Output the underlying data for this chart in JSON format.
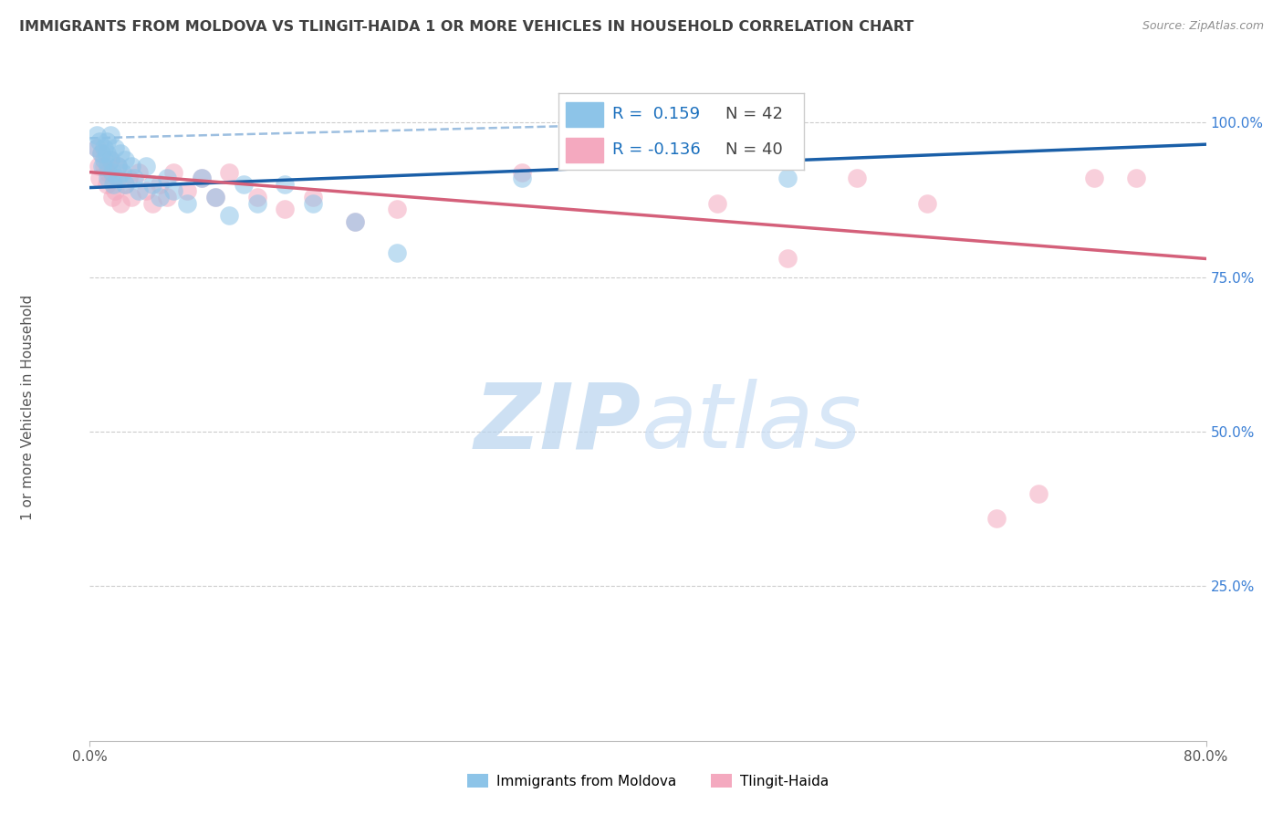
{
  "title": "IMMIGRANTS FROM MOLDOVA VS TLINGIT-HAIDA 1 OR MORE VEHICLES IN HOUSEHOLD CORRELATION CHART",
  "source": "Source: ZipAtlas.com",
  "ylabel": "1 or more Vehicles in Household",
  "ytick_labels": [
    "100.0%",
    "75.0%",
    "50.0%",
    "25.0%"
  ],
  "ytick_values": [
    1.0,
    0.75,
    0.5,
    0.25
  ],
  "xlim": [
    0.0,
    0.8
  ],
  "ylim": [
    0.0,
    1.08
  ],
  "legend_label1": "Immigrants from Moldova",
  "legend_label2": "Tlingit-Haida",
  "blue_color": "#8dc4e8",
  "pink_color": "#f4a9bf",
  "blue_line_color": "#1a5fa8",
  "pink_line_color": "#d4607a",
  "dashed_line_color": "#9dbfe0",
  "title_color": "#404040",
  "source_color": "#909090",
  "legend_r_color": "#1a6fbd",
  "watermark_zip_color": "#b8d4ee",
  "watermark_atlas_color": "#c8ddf0",
  "scatter_blue": {
    "x": [
      0.005,
      0.005,
      0.007,
      0.008,
      0.009,
      0.01,
      0.01,
      0.012,
      0.012,
      0.013,
      0.013,
      0.015,
      0.015,
      0.016,
      0.017,
      0.018,
      0.02,
      0.02,
      0.022,
      0.023,
      0.025,
      0.025,
      0.03,
      0.032,
      0.035,
      0.04,
      0.045,
      0.05,
      0.055,
      0.06,
      0.07,
      0.08,
      0.09,
      0.1,
      0.11,
      0.12,
      0.14,
      0.16,
      0.19,
      0.22,
      0.31,
      0.5
    ],
    "y": [
      0.98,
      0.96,
      0.97,
      0.95,
      0.93,
      0.96,
      0.94,
      0.97,
      0.95,
      0.93,
      0.91,
      0.98,
      0.94,
      0.92,
      0.9,
      0.96,
      0.93,
      0.91,
      0.95,
      0.92,
      0.94,
      0.9,
      0.93,
      0.91,
      0.89,
      0.93,
      0.9,
      0.88,
      0.91,
      0.89,
      0.87,
      0.91,
      0.88,
      0.85,
      0.9,
      0.87,
      0.9,
      0.87,
      0.84,
      0.79,
      0.91,
      0.91
    ]
  },
  "scatter_pink": {
    "x": [
      0.005,
      0.006,
      0.007,
      0.008,
      0.01,
      0.012,
      0.013,
      0.015,
      0.016,
      0.017,
      0.018,
      0.02,
      0.022,
      0.025,
      0.028,
      0.03,
      0.035,
      0.04,
      0.045,
      0.05,
      0.055,
      0.06,
      0.07,
      0.08,
      0.09,
      0.1,
      0.12,
      0.14,
      0.16,
      0.19,
      0.22,
      0.31,
      0.45,
      0.5,
      0.55,
      0.6,
      0.65,
      0.68,
      0.72,
      0.75
    ],
    "y": [
      0.96,
      0.93,
      0.91,
      0.95,
      0.93,
      0.9,
      0.92,
      0.94,
      0.88,
      0.91,
      0.89,
      0.93,
      0.87,
      0.9,
      0.91,
      0.88,
      0.92,
      0.89,
      0.87,
      0.9,
      0.88,
      0.92,
      0.89,
      0.91,
      0.88,
      0.92,
      0.88,
      0.86,
      0.88,
      0.84,
      0.86,
      0.92,
      0.87,
      0.78,
      0.91,
      0.87,
      0.36,
      0.4,
      0.91,
      0.91
    ]
  },
  "blue_line": {
    "x0": 0.0,
    "y0": 0.895,
    "x1": 0.8,
    "y1": 0.965
  },
  "pink_line": {
    "x0": 0.0,
    "y0": 0.92,
    "x1": 0.8,
    "y1": 0.78
  },
  "dashed_line": {
    "x0": 0.0,
    "y0": 0.975,
    "x1": 0.35,
    "y1": 0.995
  }
}
